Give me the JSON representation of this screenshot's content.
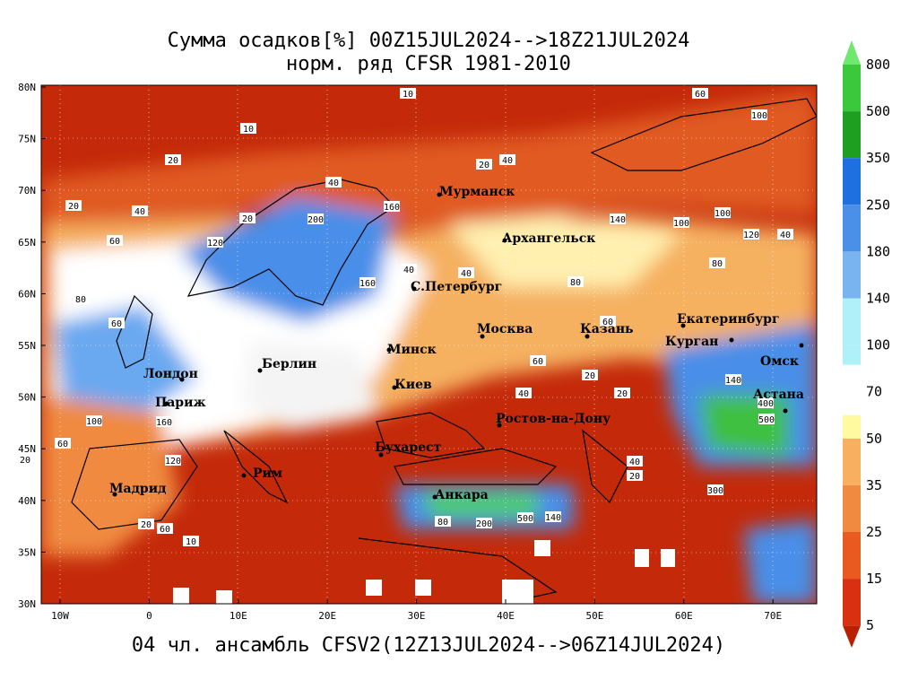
{
  "title": "Сумма осадков[%] 00Z15JUL2024-->18Z21JUL2024",
  "subtitle": "норм. ряд CFSR 1981-2010",
  "footer": "04 чл. ансамбль CFSV2(12Z13JUL2024-->06Z14JUL2024)",
  "lat_ticks": [
    "80N",
    "75N",
    "70N",
    "65N",
    "60N",
    "55N",
    "50N",
    "45N",
    "40N",
    "35N",
    "30N"
  ],
  "lon_ticks": [
    "10W",
    "0",
    "10E",
    "20E",
    "30E",
    "40E",
    "50E",
    "60E",
    "70E"
  ],
  "cities": [
    "Мурманск",
    "Архангельск",
    "С.Петербург",
    "Москва",
    "Казань",
    "Екатеринбург",
    "Курган",
    "Минск",
    "Берлин",
    "Лондон",
    "Париж",
    "Киев",
    "Омск",
    "Астана",
    "Ростов-на-Дону",
    "Бухарест",
    "Рим",
    "Мадрид",
    "Анкара"
  ],
  "colorbar": [
    800,
    500,
    350,
    250,
    180,
    140,
    100,
    70,
    50,
    35,
    25,
    15,
    5
  ],
  "contour_labels": [
    10,
    10,
    20,
    40,
    20,
    60,
    80,
    60,
    20,
    40,
    20,
    40,
    40,
    140,
    100,
    120,
    40,
    100,
    60,
    100,
    80,
    120,
    160,
    200,
    160,
    40,
    80,
    60,
    60,
    20,
    20,
    40,
    140,
    500,
    400,
    200,
    500,
    140,
    160,
    120,
    100,
    60,
    20,
    300,
    10,
    20,
    60,
    80,
    40,
    20
  ]
}
